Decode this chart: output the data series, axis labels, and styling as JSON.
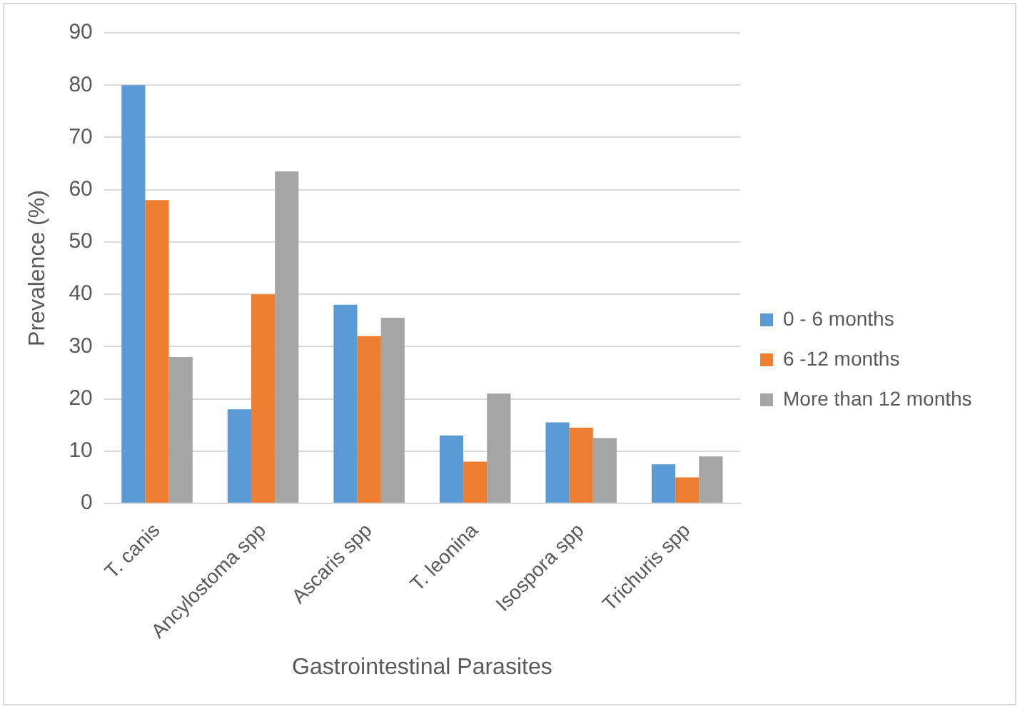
{
  "chart_data": {
    "type": "bar",
    "xlabel": "Gastrointestinal Parasites",
    "ylabel": "Prevalence (%)",
    "categories": [
      "T. canis",
      "Ancylostoma spp",
      "Ascaris spp",
      "T. leonina",
      "Isospora spp",
      "Trichuris spp"
    ],
    "series": [
      {
        "name": "0 - 6 months",
        "color": "#5b9bd5",
        "values": [
          80,
          18,
          38,
          13,
          15.5,
          7.5
        ]
      },
      {
        "name": "6 -12 months",
        "color": "#ed7d31",
        "values": [
          58,
          40,
          32,
          8,
          14.5,
          5
        ]
      },
      {
        "name": "More than 12 months",
        "color": "#a5a5a5",
        "values": [
          28,
          63.5,
          35.5,
          21,
          12.5,
          9
        ]
      }
    ],
    "ylim": [
      0,
      90
    ],
    "yticks": [
      0,
      10,
      20,
      30,
      40,
      50,
      60,
      70,
      80,
      90
    ],
    "grid": "y",
    "legend": "right"
  }
}
